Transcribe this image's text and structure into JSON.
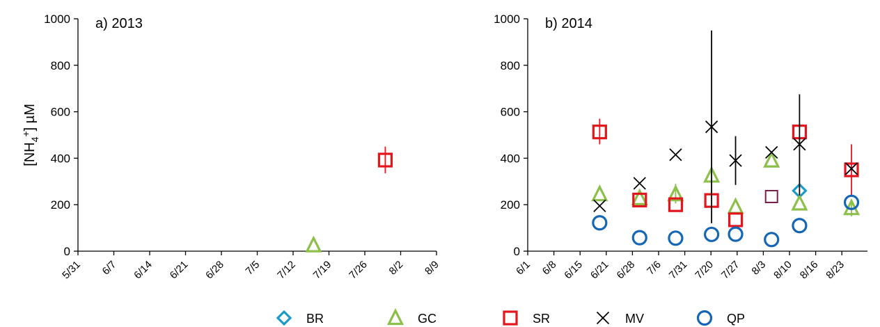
{
  "chart_data": [
    {
      "type": "scatter",
      "title": "a) 2013",
      "ylabel": "[NH4+] µM",
      "ylim": [
        0,
        1000
      ],
      "yticks": [
        0,
        200,
        400,
        600,
        800,
        1000
      ],
      "xtick_labels": [
        "5/31",
        "6/7",
        "6/14",
        "6/21",
        "6/28",
        "7/5",
        "7/12",
        "7/19",
        "7/26",
        "8/2",
        "8/9"
      ],
      "series": [
        {
          "name": "GC",
          "points": [
            {
              "x": "7/16",
              "y": 25
            }
          ]
        },
        {
          "name": "SR",
          "points": [
            {
              "x": "7/30",
              "y": 392,
              "err_low": 335,
              "err_high": 450
            }
          ]
        }
      ]
    },
    {
      "type": "scatter",
      "title": "b) 2014",
      "ylim": [
        0,
        1000
      ],
      "yticks": [
        0,
        200,
        400,
        600,
        800,
        1000
      ],
      "xtick_labels": [
        "6/1",
        "6/8",
        "6/15",
        "6/21",
        "6/28",
        "7/6",
        "7/31",
        "7/20",
        "7/27",
        "8/3",
        "8/10",
        "8/16",
        "8/23"
      ],
      "series": [
        {
          "name": "BR",
          "points": [
            {
              "x": "8/8",
              "y": 260
            }
          ]
        },
        {
          "name": "GC",
          "points": [
            {
              "x": "6/19",
              "y": 245
            },
            {
              "x": "6/29",
              "y": 228
            },
            {
              "x": "7/8",
              "y": 245,
              "err_low": 205,
              "err_high": 290
            },
            {
              "x": "7/17",
              "y": 325,
              "err_low": 240,
              "err_high": 430
            },
            {
              "x": "7/23",
              "y": 190
            },
            {
              "x": "8/1",
              "y": 390
            },
            {
              "x": "8/8",
              "y": 205
            },
            {
              "x": "8/21",
              "y": 185,
              "err_low": 150,
              "err_high": 220
            }
          ]
        },
        {
          "name": "SR",
          "points": [
            {
              "x": "6/19",
              "y": 513,
              "err_low": 460,
              "err_high": 570
            },
            {
              "x": "6/29",
              "y": 220
            },
            {
              "x": "7/8",
              "y": 200
            },
            {
              "x": "7/17",
              "y": 218
            },
            {
              "x": "7/23",
              "y": 135
            },
            {
              "x": "8/8",
              "y": 513
            },
            {
              "x": "8/21",
              "y": 350,
              "err_low": 240,
              "err_high": 460
            }
          ]
        },
        {
          "name": "",
          "color": "#7b1f4a",
          "points": [
            {
              "x": "8/1",
              "y": 235
            }
          ]
        },
        {
          "name": "MV",
          "points": [
            {
              "x": "6/19",
              "y": 195
            },
            {
              "x": "6/29",
              "y": 292
            },
            {
              "x": "7/8",
              "y": 415
            },
            {
              "x": "7/17",
              "y": 535,
              "err_low": 120,
              "err_high": 950
            },
            {
              "x": "7/23",
              "y": 390,
              "err_low": 285,
              "err_high": 495
            },
            {
              "x": "8/1",
              "y": 425
            },
            {
              "x": "8/8",
              "y": 460,
              "err_low": 240,
              "err_high": 675
            },
            {
              "x": "8/21",
              "y": 355
            }
          ]
        },
        {
          "name": "QP",
          "points": [
            {
              "x": "6/19",
              "y": 122
            },
            {
              "x": "6/29",
              "y": 58
            },
            {
              "x": "7/8",
              "y": 56
            },
            {
              "x": "7/17",
              "y": 72
            },
            {
              "x": "7/23",
              "y": 73
            },
            {
              "x": "8/1",
              "y": 50
            },
            {
              "x": "8/8",
              "y": 110
            },
            {
              "x": "8/21",
              "y": 210
            }
          ]
        }
      ]
    }
  ],
  "legend": [
    {
      "name": "BR",
      "marker": "diamond",
      "color": "#1a9ac9"
    },
    {
      "name": "GC",
      "marker": "triangle",
      "color": "#8cc04a"
    },
    {
      "name": "SR",
      "marker": "square",
      "color": "#e3161d"
    },
    {
      "name": "MV",
      "marker": "x",
      "color": "#000000"
    },
    {
      "name": "QP",
      "marker": "circle",
      "color": "#1567b5"
    }
  ],
  "colors": {
    "BR": "#1a9ac9",
    "GC": "#8cc04a",
    "SR": "#e3161d",
    "MV": "#000000",
    "QP": "#1567b5"
  }
}
